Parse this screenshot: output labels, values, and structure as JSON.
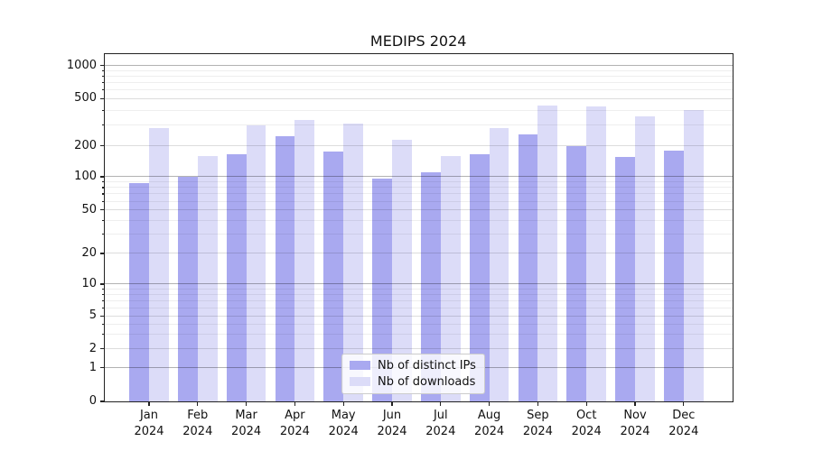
{
  "chart_data": {
    "type": "bar",
    "title": "MEDIPS 2024",
    "categories": [
      "Jan",
      "Feb",
      "Mar",
      "Apr",
      "May",
      "Jun",
      "Jul",
      "Aug",
      "Sep",
      "Oct",
      "Nov",
      "Dec"
    ],
    "year_label": "2024",
    "series": [
      {
        "name": "Nb of distinct IPs",
        "key": "distinct-ips",
        "color": "#a9a9f0",
        "values": [
          88,
          100,
          165,
          240,
          175,
          97,
          110,
          165,
          250,
          198,
          155,
          180
        ]
      },
      {
        "name": "Nb of downloads",
        "key": "downloads",
        "color": "#dcdcf8",
        "values": [
          280,
          160,
          295,
          330,
          310,
          225,
          160,
          280,
          440,
          430,
          355,
          400
        ]
      }
    ],
    "yscale": "symlog",
    "ylim": [
      0,
      1270
    ],
    "y_major_ticks": [
      0,
      1,
      2,
      5,
      10,
      20,
      50,
      100,
      200,
      500,
      1000
    ],
    "y_decade_ticks": [
      1,
      10,
      100,
      1000
    ],
    "y_minor_ticks": [
      3,
      4,
      6,
      7,
      8,
      9,
      30,
      40,
      60,
      70,
      80,
      90,
      300,
      400,
      600,
      700,
      800,
      900
    ],
    "grid": true,
    "legend_position": "lower center",
    "xlabel": "",
    "ylabel": ""
  }
}
